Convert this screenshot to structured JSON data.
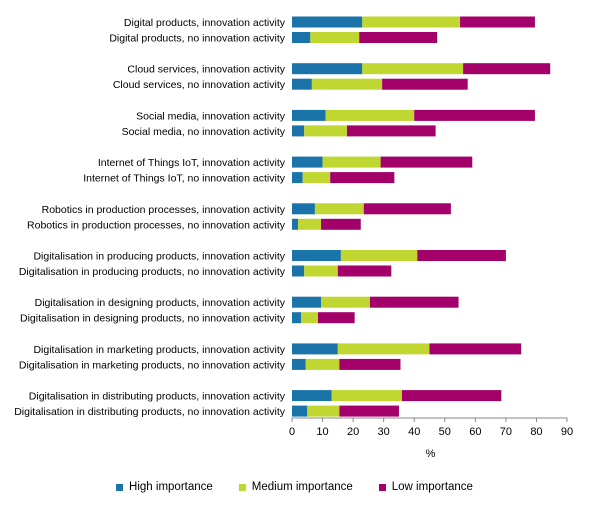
{
  "chart_data": {
    "type": "bar",
    "orientation": "horizontal",
    "stacked": true,
    "categories": [
      "Digital products, innovation activity",
      "Digital products, no innovation activity",
      "Cloud services, innovation activity",
      "Cloud services, no innovation activity",
      "Social media, innovation activity",
      "Social media, no innovation activity",
      "Internet of Things IoT, innovation activity",
      "Internet of Things IoT, no innovation activity",
      "Robotics in production processes, innovation activity",
      "Robotics in production processes, no innovation activity",
      "Digitalisation in producing products, innovation activity",
      "Digitalisation in producing products, no innovation activity",
      "Digitalisation in designing products, innovation activity",
      "Digitalisation in designing products, no innovation activity",
      "Digitalisation in marketing products, innovation activity",
      "Digitalisation in marketing products, no innovation activity",
      "Digitalisation in distributing products, innovation activity",
      "Digitalisation in distributing products, no innovation activity"
    ],
    "series": [
      {
        "name": "High importance",
        "color": "#1a74a9",
        "values": [
          23,
          6,
          23,
          6.5,
          11,
          4,
          10,
          3.5,
          7.5,
          2,
          16,
          4,
          9.5,
          3,
          15,
          4.5,
          13,
          5
        ]
      },
      {
        "name": "Medium importance",
        "color": "#bfd730",
        "values": [
          32,
          16,
          33,
          23,
          29,
          14,
          19,
          9,
          16,
          7.5,
          25,
          11,
          16,
          5.5,
          30,
          11,
          23,
          10.5
        ]
      },
      {
        "name": "Low importance",
        "color": "#a4006a",
        "values": [
          24.5,
          25.5,
          28.5,
          28,
          39.5,
          29,
          30,
          21,
          28.5,
          13,
          29,
          17.5,
          29,
          12,
          30,
          20,
          32.5,
          19.5
        ]
      }
    ],
    "xlim": [
      0,
      90
    ],
    "xticks": [
      "0",
      "10",
      "20",
      "30",
      "40",
      "50",
      "60",
      "70",
      "80",
      "90"
    ],
    "xlabel": "%",
    "grid": false,
    "legend_position": "bottom"
  }
}
